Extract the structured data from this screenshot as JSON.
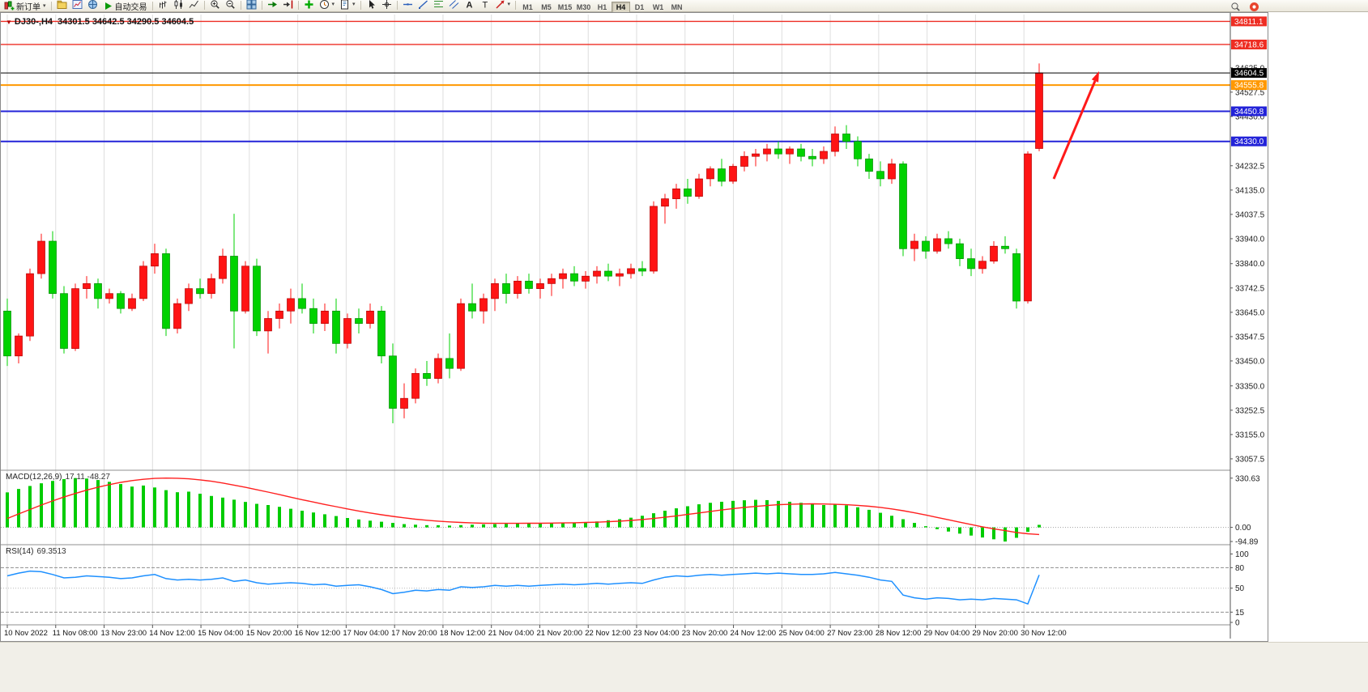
{
  "toolbar": {
    "new_order": {
      "label": "新订单",
      "icon": "new-order-icon"
    },
    "auto_trading": {
      "label": "自动交易",
      "icon": "play-icon"
    },
    "view_icons": [
      "profiles-icon",
      "market-watch-icon",
      "navigator-icon"
    ],
    "icon_groups": [
      {
        "name": "chart-types",
        "icons": [
          "bar-chart-icon",
          "candlestick-icon",
          "line-chart-icon"
        ]
      },
      {
        "name": "zoom",
        "icons": [
          "zoom-in-icon",
          "zoom-out-icon"
        ]
      },
      {
        "name": "windows",
        "icons": [
          "tile-windows-icon"
        ]
      },
      {
        "name": "scrolling",
        "icons": [
          "auto-scroll-icon",
          "chart-shift-icon"
        ]
      },
      {
        "name": "insert",
        "icons": [
          "indicators-icon",
          "periods-icon",
          "templates-icon"
        ]
      },
      {
        "name": "cursor",
        "icons": [
          "cursor-icon",
          "crosshair-icon"
        ]
      },
      {
        "name": "draw",
        "icons": [
          "horizontal-line-icon",
          "trendline-icon",
          "fibonacci-icon",
          "channel-icon",
          "text-icon",
          "label-icon",
          "arrows-icon"
        ]
      }
    ],
    "caret_icons": [
      "periods-icon",
      "templates-icon",
      "arrows-icon"
    ],
    "timeframes": [
      "M1",
      "M5",
      "M15",
      "M30",
      "H1",
      "H4",
      "D1",
      "W1",
      "MN"
    ],
    "active_timeframe": "H4",
    "right_icons": [
      "search-icon",
      "community-icon"
    ]
  },
  "chart": {
    "symbol_period": "DJ30-,H4",
    "ohlc": "34301.5 34642.5 34290.5 34604.5",
    "macd_label": "MACD(12,26,9)",
    "macd_values": "17.11 -48.27",
    "rsi_label": "RSI(14)",
    "rsi_value": "69.3513"
  },
  "chart_data": {
    "type": "candlestick",
    "symbol": "DJ30-",
    "period": "H4",
    "up_color": "#ff1414",
    "down_color": "#00d200",
    "ylim": [
      33041,
      34832
    ],
    "price_ticks": [
      "34625.0",
      "34527.5",
      "34430.0",
      "34232.5",
      "34135.0",
      "34037.5",
      "33940.0",
      "33840.0",
      "33742.5",
      "33645.0",
      "33547.5",
      "33450.0",
      "33350.0",
      "33252.5",
      "33155.0",
      "33057.5"
    ],
    "levels": [
      {
        "value": 34811.1,
        "label": "34811.1",
        "color": "#ee2e24",
        "width": 1.3,
        "style": "line"
      },
      {
        "value": 34718.6,
        "label": "34718.6",
        "color": "#ee2e24",
        "width": 1.3,
        "style": "line"
      },
      {
        "value": 34604.5,
        "label": "34604.5",
        "color": "#000000",
        "width": 1,
        "style": "current"
      },
      {
        "value": 34555.8,
        "label": "34555.8",
        "color": "#ff9800",
        "width": 2,
        "style": "line"
      },
      {
        "value": 34450.8,
        "label": "34450.8",
        "color": "#2323d8",
        "width": 2,
        "style": "line"
      },
      {
        "value": 34330.0,
        "label": "34330.0",
        "color": "#2323d8",
        "width": 2,
        "style": "line"
      }
    ],
    "time_labels": [
      "10 Nov 2022",
      "11 Nov 08:00",
      "13 Nov 23:00",
      "14 Nov 12:00",
      "15 Nov 04:00",
      "15 Nov 20:00",
      "16 Nov 12:00",
      "17 Nov 04:00",
      "17 Nov 20:00",
      "18 Nov 12:00",
      "21 Nov 04:00",
      "21 Nov 20:00",
      "22 Nov 12:00",
      "23 Nov 04:00",
      "23 Nov 20:00",
      "24 Nov 12:00",
      "25 Nov 04:00",
      "27 Nov 23:00",
      "28 Nov 12:00",
      "29 Nov 04:00",
      "29 Nov 20:00",
      "30 Nov 12:00"
    ],
    "candles": [
      [
        33650,
        33700,
        33430,
        33470
      ],
      [
        33470,
        33560,
        33440,
        33550
      ],
      [
        33550,
        33820,
        33530,
        33800
      ],
      [
        33800,
        33960,
        33780,
        33930
      ],
      [
        33930,
        33970,
        33700,
        33720
      ],
      [
        33720,
        33750,
        33480,
        33500
      ],
      [
        33500,
        33760,
        33490,
        33740
      ],
      [
        33740,
        33790,
        33700,
        33760
      ],
      [
        33760,
        33780,
        33660,
        33700
      ],
      [
        33700,
        33740,
        33680,
        33720
      ],
      [
        33720,
        33730,
        33640,
        33660
      ],
      [
        33660,
        33720,
        33650,
        33700
      ],
      [
        33700,
        33850,
        33690,
        33830
      ],
      [
        33830,
        33920,
        33800,
        33880
      ],
      [
        33880,
        33900,
        33550,
        33580
      ],
      [
        33580,
        33700,
        33560,
        33680
      ],
      [
        33680,
        33760,
        33650,
        33740
      ],
      [
        33740,
        33780,
        33700,
        33720
      ],
      [
        33720,
        33800,
        33700,
        33780
      ],
      [
        33780,
        33900,
        33760,
        33870
      ],
      [
        33870,
        34040,
        33500,
        33650
      ],
      [
        33650,
        33850,
        33640,
        33830
      ],
      [
        33830,
        33860,
        33550,
        33570
      ],
      [
        33570,
        33650,
        33480,
        33620
      ],
      [
        33620,
        33680,
        33580,
        33650
      ],
      [
        33650,
        33740,
        33600,
        33700
      ],
      [
        33700,
        33760,
        33640,
        33660
      ],
      [
        33660,
        33700,
        33560,
        33600
      ],
      [
        33600,
        33680,
        33570,
        33650
      ],
      [
        33650,
        33700,
        33480,
        33520
      ],
      [
        33520,
        33640,
        33500,
        33620
      ],
      [
        33620,
        33660,
        33560,
        33600
      ],
      [
        33600,
        33680,
        33580,
        33650
      ],
      [
        33650,
        33670,
        33440,
        33470
      ],
      [
        33470,
        33520,
        33200,
        33260
      ],
      [
        33260,
        33360,
        33220,
        33300
      ],
      [
        33300,
        33420,
        33280,
        33400
      ],
      [
        33400,
        33450,
        33350,
        33380
      ],
      [
        33380,
        33480,
        33360,
        33460
      ],
      [
        33460,
        33560,
        33380,
        33420
      ],
      [
        33420,
        33700,
        33410,
        33680
      ],
      [
        33680,
        33760,
        33620,
        33650
      ],
      [
        33650,
        33720,
        33600,
        33700
      ],
      [
        33700,
        33780,
        33650,
        33760
      ],
      [
        33760,
        33800,
        33680,
        33720
      ],
      [
        33720,
        33790,
        33700,
        33770
      ],
      [
        33770,
        33800,
        33720,
        33740
      ],
      [
        33740,
        33780,
        33700,
        33760
      ],
      [
        33760,
        33800,
        33710,
        33780
      ],
      [
        33780,
        33820,
        33740,
        33800
      ],
      [
        33800,
        33830,
        33750,
        33770
      ],
      [
        33770,
        33810,
        33740,
        33790
      ],
      [
        33790,
        33830,
        33760,
        33810
      ],
      [
        33810,
        33840,
        33770,
        33790
      ],
      [
        33790,
        33820,
        33750,
        33800
      ],
      [
        33800,
        33840,
        33780,
        33820
      ],
      [
        33820,
        33850,
        33790,
        33810
      ],
      [
        33810,
        34090,
        33800,
        34070
      ],
      [
        34070,
        34120,
        34000,
        34100
      ],
      [
        34100,
        34160,
        34060,
        34140
      ],
      [
        34140,
        34180,
        34080,
        34110
      ],
      [
        34110,
        34200,
        34100,
        34180
      ],
      [
        34180,
        34230,
        34150,
        34220
      ],
      [
        34220,
        34260,
        34150,
        34170
      ],
      [
        34170,
        34240,
        34160,
        34230
      ],
      [
        34230,
        34290,
        34210,
        34270
      ],
      [
        34270,
        34300,
        34230,
        34280
      ],
      [
        34280,
        34320,
        34250,
        34300
      ],
      [
        34300,
        34330,
        34260,
        34280
      ],
      [
        34280,
        34310,
        34240,
        34300
      ],
      [
        34300,
        34320,
        34250,
        34270
      ],
      [
        34270,
        34300,
        34230,
        34260
      ],
      [
        34260,
        34310,
        34240,
        34290
      ],
      [
        34290,
        34390,
        34270,
        34360
      ],
      [
        34360,
        34395,
        34300,
        34330
      ],
      [
        34330,
        34350,
        34230,
        34260
      ],
      [
        34260,
        34280,
        34180,
        34210
      ],
      [
        34210,
        34250,
        34150,
        34180
      ],
      [
        34180,
        34260,
        34160,
        34240
      ],
      [
        34240,
        34250,
        33870,
        33900
      ],
      [
        33900,
        33960,
        33850,
        33930
      ],
      [
        33930,
        33950,
        33860,
        33890
      ],
      [
        33890,
        33960,
        33880,
        33940
      ],
      [
        33940,
        33970,
        33900,
        33920
      ],
      [
        33920,
        33940,
        33830,
        33860
      ],
      [
        33860,
        33900,
        33790,
        33820
      ],
      [
        33820,
        33870,
        33800,
        33850
      ],
      [
        33850,
        33930,
        33840,
        33910
      ],
      [
        33910,
        33950,
        33880,
        33900
      ],
      [
        33880,
        33900,
        33660,
        33690
      ],
      [
        33690,
        34290,
        33680,
        34280
      ],
      [
        34301.5,
        34642.5,
        34290.5,
        34604.5
      ]
    ],
    "macd": {
      "label": "MACD(12,26,9)",
      "main_value": 17.11,
      "signal_value": -48.27,
      "ticks": [
        "330.63",
        "0.00",
        "-94.89"
      ],
      "ylim": [
        -100,
        362
      ],
      "hist_color": "#00cc00",
      "signal_color": "#ff2020",
      "hist": [
        235,
        258,
        278,
        296,
        312,
        324,
        331,
        328,
        318,
        306,
        291,
        274,
        281,
        268,
        250,
        236,
        240,
        226,
        211,
        200,
        186,
        171,
        158,
        150,
        138,
        125,
        112,
        100,
        88,
        76,
        63,
        53,
        45,
        38,
        30,
        22,
        18,
        15,
        14,
        12,
        15,
        18,
        20,
        22,
        24,
        25,
        26,
        26,
        28,
        30,
        32,
        35,
        40,
        48,
        55,
        65,
        78,
        95,
        112,
        128,
        142,
        155,
        165,
        172,
        178,
        182,
        185,
        183,
        178,
        172,
        165,
        158,
        150,
        155,
        148,
        135,
        118,
        98,
        78,
        55,
        30,
        8,
        -12,
        -28,
        -42,
        -55,
        -68,
        -80,
        -95,
        -70,
        -30,
        17
      ],
      "signal": [
        60,
        90,
        120,
        150,
        178,
        204,
        228,
        250,
        270,
        287,
        302,
        314,
        323,
        329,
        331,
        330,
        326,
        319,
        310,
        298,
        284,
        269,
        253,
        237,
        220,
        203,
        186,
        170,
        154,
        139,
        124,
        110,
        97,
        85,
        74,
        64,
        55,
        48,
        42,
        37,
        33,
        30,
        28,
        27,
        27,
        27,
        28,
        28,
        29,
        30,
        31,
        33,
        35,
        38,
        42,
        47,
        53,
        60,
        68,
        77,
        87,
        97,
        107,
        117,
        126,
        134,
        141,
        147,
        152,
        155,
        157,
        158,
        157,
        155,
        152,
        148,
        142,
        134,
        124,
        112,
        98,
        83,
        67,
        51,
        35,
        19,
        4,
        -10,
        -22,
        -34,
        -43,
        -48
      ]
    },
    "rsi": {
      "label": "RSI(14)",
      "value": 69.3513,
      "ticks": [
        "100",
        "80",
        "50",
        "15",
        "0"
      ],
      "levels": [
        80,
        50,
        15
      ],
      "ylim": [
        0,
        110
      ],
      "line_color": "#1e90ff",
      "values": [
        68,
        72,
        75,
        74,
        70,
        65,
        66,
        68,
        67,
        66,
        64,
        65,
        68,
        70,
        64,
        62,
        63,
        62,
        63,
        65,
        60,
        62,
        58,
        56,
        57,
        58,
        57,
        55,
        56,
        53,
        54,
        55,
        52,
        48,
        42,
        44,
        47,
        46,
        48,
        47,
        52,
        51,
        52,
        54,
        53,
        54,
        53,
        54,
        55,
        56,
        55,
        56,
        57,
        56,
        57,
        58,
        57,
        62,
        66,
        68,
        67,
        69,
        70,
        69,
        70,
        71,
        72,
        71,
        72,
        71,
        70,
        70,
        71,
        73,
        71,
        69,
        66,
        62,
        60,
        40,
        36,
        34,
        36,
        35,
        33,
        34,
        33,
        35,
        34,
        33,
        27,
        69.35
      ]
    },
    "annotation": {
      "type": "arrow",
      "direction": "up-right",
      "color": "#ff1a1a"
    }
  }
}
